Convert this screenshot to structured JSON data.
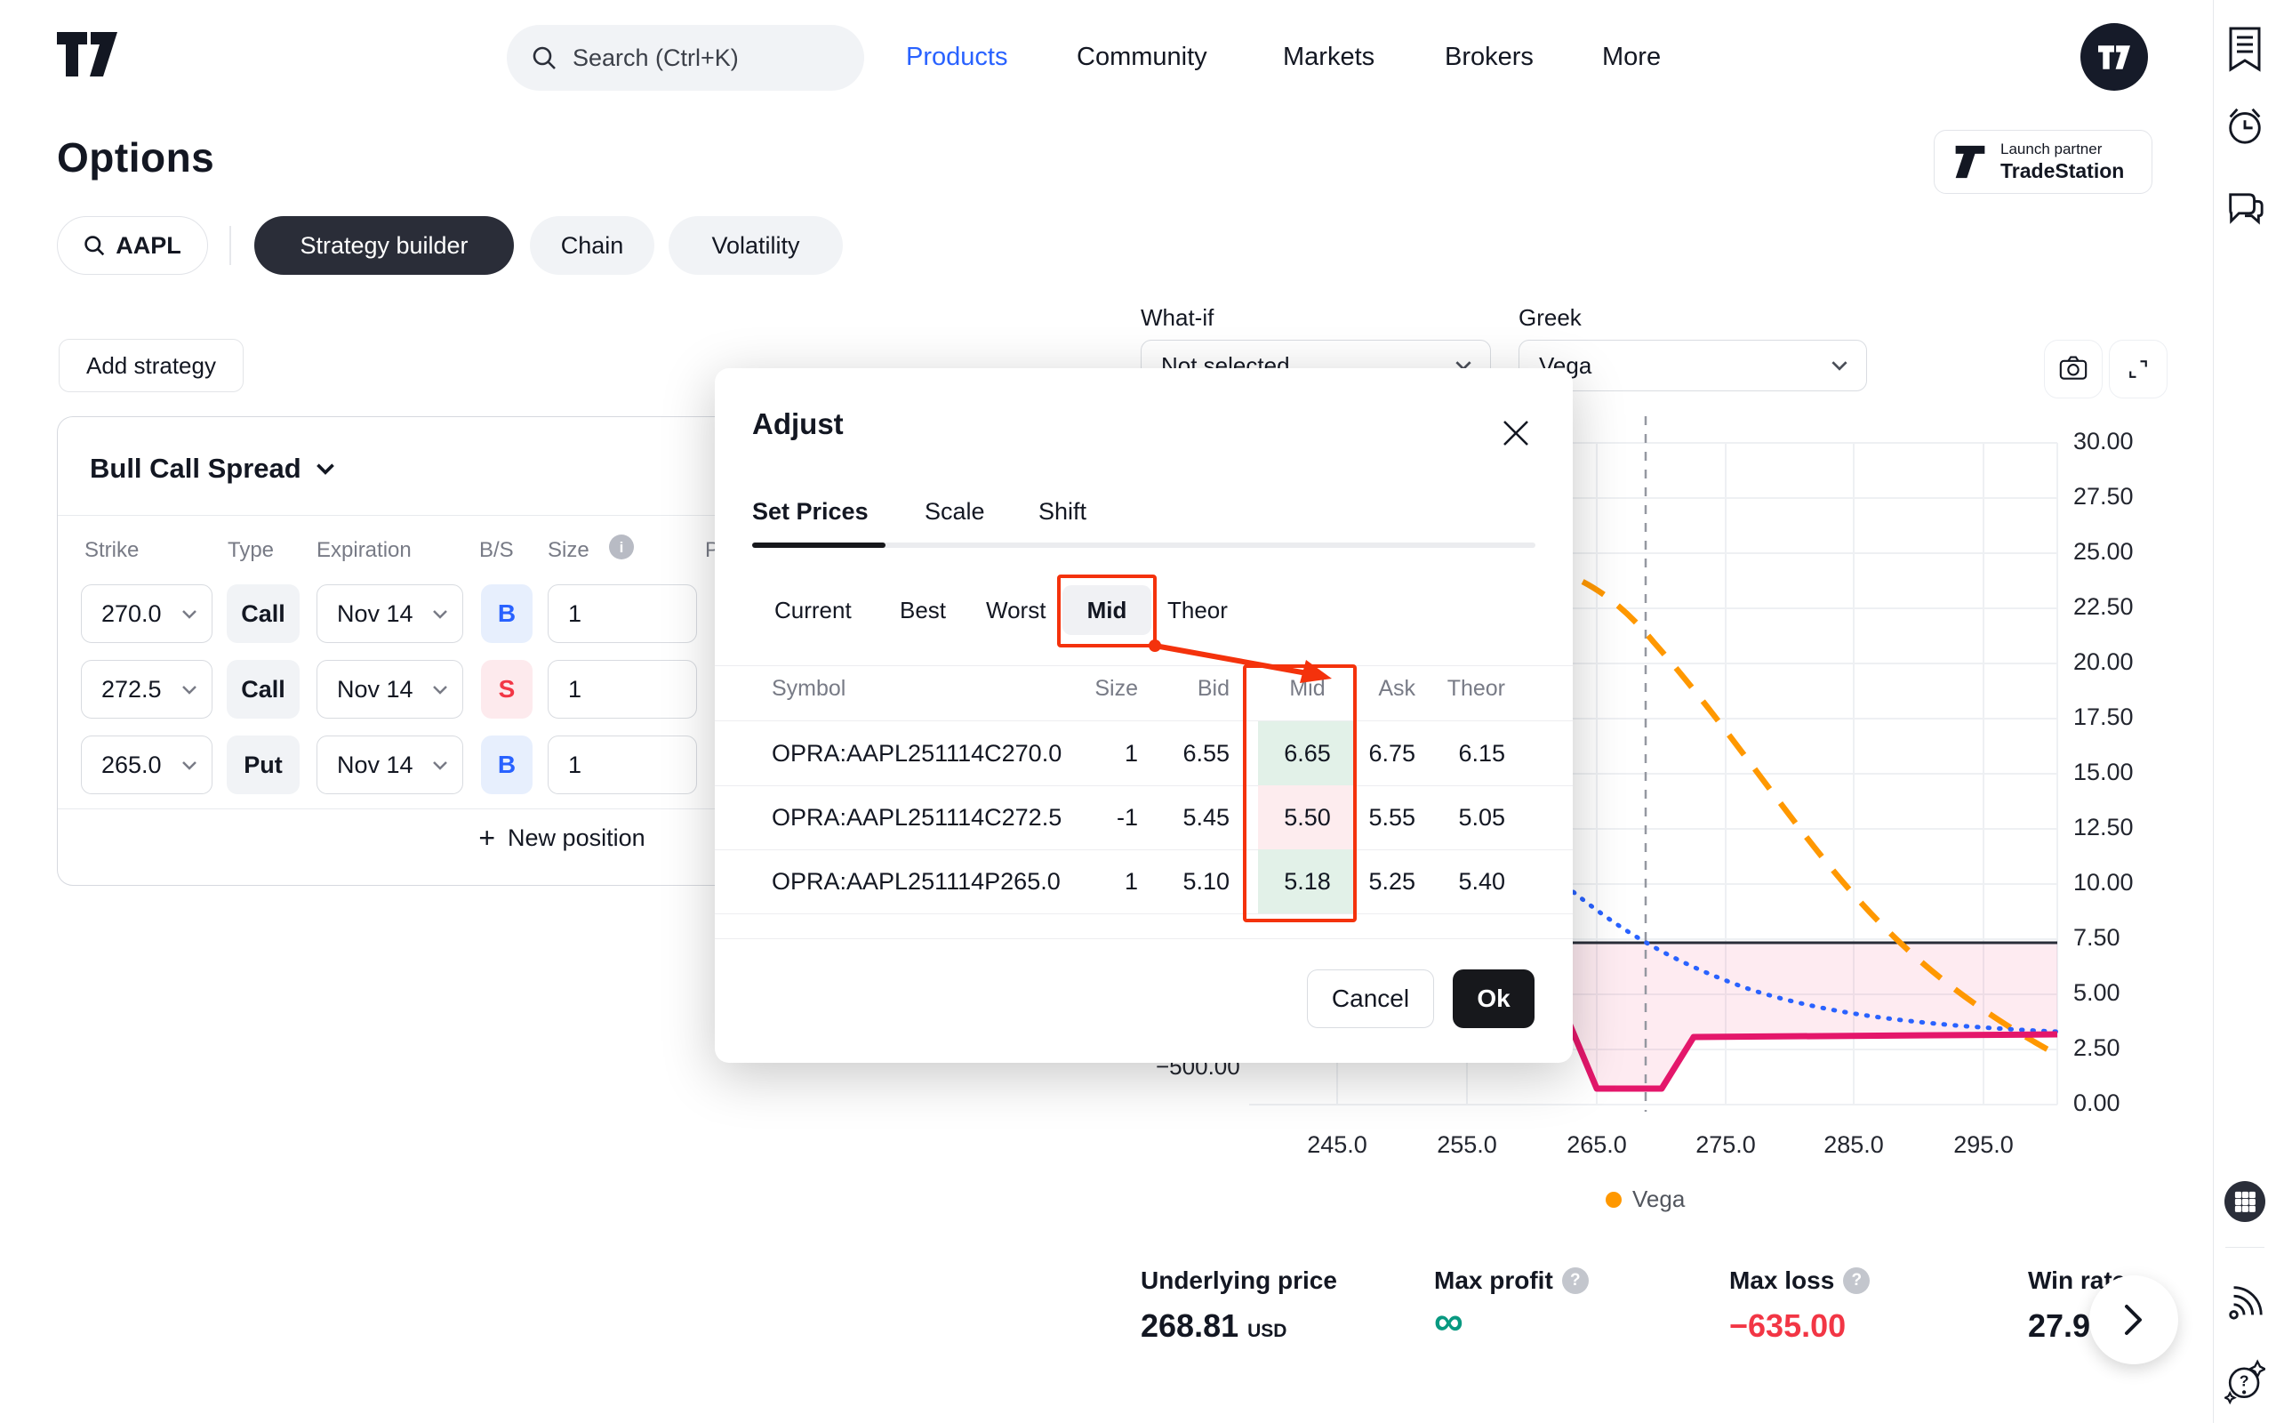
{
  "header": {
    "search_placeholder": "Search (Ctrl+K)",
    "nav": [
      {
        "label": "Products"
      },
      {
        "label": "Community"
      },
      {
        "label": "Markets"
      },
      {
        "label": "Brokers"
      },
      {
        "label": "More"
      }
    ]
  },
  "right_rail_icons": [
    "bookmark",
    "alarm-clock",
    "chat",
    "apps-grid",
    "data-feed",
    "help"
  ],
  "page": {
    "title": "Options"
  },
  "partner_badge": {
    "line1": "Launch partner",
    "line2": "TradeStation"
  },
  "symbol_tabs": {
    "symbol": "AAPL",
    "tabs": [
      {
        "label": "Strategy builder",
        "active": true
      },
      {
        "label": "Chain",
        "active": false
      },
      {
        "label": "Volatility",
        "active": false
      }
    ]
  },
  "toolbar": {
    "add_strategy": "Add strategy",
    "what_if": {
      "label": "What-if",
      "value": "Not selected"
    },
    "greek": {
      "label": "Greek",
      "value": "Vega"
    }
  },
  "strategy": {
    "name": "Bull Call Spread",
    "columns": {
      "strike": "Strike",
      "type": "Type",
      "expiration": "Expiration",
      "bs": "B/S",
      "size": "Size",
      "price": "Price"
    },
    "legs": [
      {
        "strike": "270.0",
        "type": "Call",
        "expiration": "Nov 14",
        "bs": "B",
        "size": "1"
      },
      {
        "strike": "272.5",
        "type": "Call",
        "expiration": "Nov 14",
        "bs": "S",
        "size": "1"
      },
      {
        "strike": "265.0",
        "type": "Put",
        "expiration": "Nov 14",
        "bs": "B",
        "size": "1"
      }
    ],
    "new_position": "New position"
  },
  "modal": {
    "title": "Adjust",
    "tabs": [
      {
        "label": "Set Prices",
        "active": true
      },
      {
        "label": "Scale",
        "active": false
      },
      {
        "label": "Shift",
        "active": false
      }
    ],
    "price_modes": [
      {
        "label": "Current",
        "selected": false
      },
      {
        "label": "Best",
        "selected": false
      },
      {
        "label": "Worst",
        "selected": false
      },
      {
        "label": "Mid",
        "selected": true
      },
      {
        "label": "Theor",
        "selected": false
      }
    ],
    "table": {
      "columns": {
        "symbol": "Symbol",
        "size": "Size",
        "bid": "Bid",
        "mid": "Mid",
        "ask": "Ask",
        "theor": "Theor"
      },
      "rows": [
        {
          "symbol": "OPRA:AAPL251114C270.0",
          "size": "1",
          "bid": "6.55",
          "mid": "6.65",
          "ask": "6.75",
          "theor": "6.15",
          "mid_tone": "green"
        },
        {
          "symbol": "OPRA:AAPL251114C272.5",
          "size": "-1",
          "bid": "5.45",
          "mid": "5.50",
          "ask": "5.55",
          "theor": "5.05",
          "mid_tone": "red"
        },
        {
          "symbol": "OPRA:AAPL251114P265.0",
          "size": "1",
          "bid": "5.10",
          "mid": "5.18",
          "ask": "5.25",
          "theor": "5.40",
          "mid_tone": "green"
        }
      ]
    },
    "cancel": "Cancel",
    "ok": "Ok"
  },
  "chart": {
    "y_ticks": [
      "30.00",
      "27.50",
      "25.00",
      "22.50",
      "20.00",
      "17.50",
      "15.00",
      "12.50",
      "10.00",
      "7.50",
      "5.00",
      "2.50",
      "0.00"
    ],
    "x_ticks": [
      "245.0",
      "255.0",
      "265.0",
      "275.0",
      "285.0",
      "295.0"
    ],
    "left_axis_label": "−500.00",
    "legend": {
      "label": "Vega",
      "color": "#ff9800"
    },
    "colors": {
      "vega_line": "#ff9800",
      "secondary_line": "#2962ff",
      "pl_line": "#e4176b",
      "zero_line": "#2a2e39",
      "annotation": "#f4320c"
    }
  },
  "stats": {
    "underlying": {
      "label": "Underlying price",
      "value": "268.81",
      "unit": "USD"
    },
    "max_profit": {
      "label": "Max profit",
      "value": "∞",
      "color": "#089981"
    },
    "max_loss": {
      "label": "Max loss",
      "value": "−635.00",
      "color": "#f23645"
    },
    "win_rate": {
      "label": "Win rate",
      "value": "27.9"
    }
  }
}
